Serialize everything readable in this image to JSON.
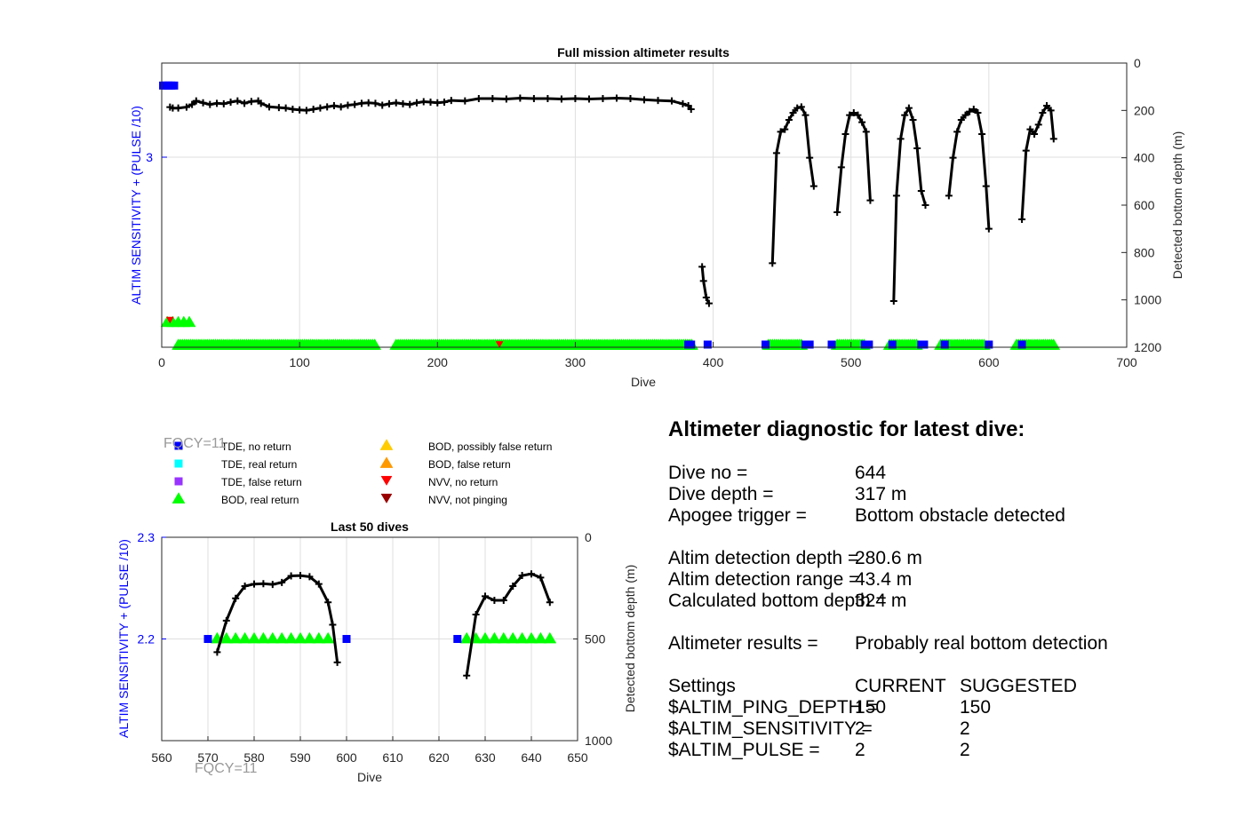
{
  "chart_data": [
    {
      "type": "scatter",
      "title": "Full mission altimeter results",
      "xlabel": "Dive",
      "ylabel": "ALTIM SENSITIVITY + (PULSE /10)",
      "ylabel_right": "Detected bottom depth (m)",
      "xlim": [
        0,
        700
      ],
      "x_ticks": [
        "0",
        "100",
        "200",
        "300",
        "400",
        "500",
        "600",
        "700"
      ],
      "y_ticks_left": [
        "3"
      ],
      "y_ticks_right": [
        "0",
        "200",
        "400",
        "600",
        "800",
        "1000",
        "1200"
      ],
      "ylim_right": [
        1200,
        0
      ],
      "grid": true,
      "depth_series_segments": [
        [
          [
            6,
            186
          ],
          [
            8,
            190
          ],
          [
            12,
            190
          ],
          [
            18,
            186
          ],
          [
            22,
            175
          ],
          [
            25,
            160
          ],
          [
            30,
            168
          ],
          [
            35,
            175
          ],
          [
            40,
            170
          ],
          [
            45,
            172
          ],
          [
            50,
            165
          ],
          [
            55,
            160
          ],
          [
            60,
            170
          ],
          [
            65,
            162
          ],
          [
            70,
            160
          ],
          [
            72,
            170
          ],
          [
            78,
            185
          ],
          [
            85,
            188
          ],
          [
            90,
            190
          ],
          [
            95,
            195
          ],
          [
            100,
            198
          ],
          [
            105,
            200
          ],
          [
            110,
            195
          ],
          [
            115,
            190
          ],
          [
            120,
            185
          ],
          [
            125,
            180
          ],
          [
            130,
            185
          ],
          [
            135,
            178
          ],
          [
            140,
            175
          ],
          [
            145,
            170
          ],
          [
            150,
            168
          ],
          [
            155,
            170
          ],
          [
            160,
            178
          ],
          [
            165,
            172
          ],
          [
            170,
            168
          ],
          [
            175,
            172
          ],
          [
            180,
            175
          ],
          [
            185,
            168
          ],
          [
            190,
            163
          ],
          [
            195,
            165
          ],
          [
            200,
            168
          ],
          [
            205,
            165
          ],
          [
            210,
            158
          ],
          [
            220,
            160
          ],
          [
            230,
            150
          ],
          [
            240,
            150
          ],
          [
            250,
            152
          ],
          [
            260,
            148
          ],
          [
            270,
            150
          ],
          [
            280,
            150
          ],
          [
            290,
            152
          ],
          [
            300,
            150
          ],
          [
            310,
            152
          ],
          [
            320,
            150
          ],
          [
            330,
            148
          ],
          [
            340,
            150
          ],
          [
            350,
            155
          ],
          [
            360,
            158
          ],
          [
            370,
            160
          ],
          [
            378,
            172
          ],
          [
            382,
            180
          ],
          [
            384,
            195
          ]
        ],
        [
          [
            392,
            860
          ],
          [
            393,
            920
          ],
          [
            395,
            990
          ],
          [
            397,
            1015
          ]
        ],
        [
          [
            443,
            845
          ],
          [
            446,
            380
          ],
          [
            449,
            290
          ],
          [
            452,
            280
          ],
          [
            455,
            240
          ],
          [
            458,
            210
          ],
          [
            461,
            190
          ],
          [
            464,
            185
          ],
          [
            467,
            220
          ],
          [
            470,
            400
          ],
          [
            473,
            520
          ]
        ],
        [
          [
            490,
            630
          ],
          [
            493,
            440
          ],
          [
            496,
            300
          ],
          [
            499,
            220
          ],
          [
            502,
            210
          ],
          [
            505,
            220
          ],
          [
            508,
            250
          ],
          [
            511,
            290
          ],
          [
            514,
            580
          ]
        ],
        [
          [
            531,
            1005
          ],
          [
            533,
            560
          ],
          [
            536,
            320
          ],
          [
            539,
            220
          ],
          [
            542,
            190
          ],
          [
            545,
            240
          ],
          [
            548,
            360
          ],
          [
            551,
            540
          ],
          [
            554,
            600
          ]
        ],
        [
          [
            571,
            560
          ],
          [
            574,
            400
          ],
          [
            577,
            290
          ],
          [
            580,
            240
          ],
          [
            583,
            220
          ],
          [
            586,
            205
          ],
          [
            589,
            195
          ],
          [
            592,
            210
          ],
          [
            595,
            300
          ],
          [
            598,
            520
          ],
          [
            600,
            700
          ]
        ],
        [
          [
            624,
            660
          ],
          [
            627,
            370
          ],
          [
            630,
            280
          ],
          [
            633,
            300
          ],
          [
            636,
            260
          ],
          [
            639,
            210
          ],
          [
            642,
            180
          ],
          [
            645,
            200
          ],
          [
            647,
            320
          ]
        ]
      ],
      "tde_no_return_markers": [
        [
          1,
          95
        ],
        [
          3,
          95
        ],
        [
          5,
          95
        ],
        [
          7,
          95
        ],
        [
          9,
          95
        ],
        [
          382,
          1200
        ],
        [
          384,
          1200
        ],
        [
          396,
          1200
        ],
        [
          438,
          1200
        ],
        [
          467,
          1200
        ],
        [
          470,
          1200
        ],
        [
          486,
          1200
        ],
        [
          510,
          1200
        ],
        [
          513,
          1200
        ],
        [
          530,
          1200
        ],
        [
          551,
          1200
        ],
        [
          553,
          1200
        ],
        [
          568,
          1200
        ],
        [
          600,
          1200
        ],
        [
          624,
          1200
        ]
      ],
      "bod_real_spans": [
        [
          12,
          155
        ],
        [
          170,
          385
        ],
        [
          440,
          465
        ],
        [
          490,
          510
        ],
        [
          528,
          548
        ],
        [
          565,
          597
        ],
        [
          620,
          648
        ]
      ],
      "bod_cluster_small": [
        [
          4,
          1100
        ],
        [
          8,
          1100
        ],
        [
          12,
          1100
        ],
        [
          16,
          1100
        ],
        [
          20,
          1100
        ]
      ],
      "nvv_no_return_markers": [
        [
          6,
          1092
        ],
        [
          245,
          1195
        ]
      ],
      "annotation_fqcy_top": "FQCY=11"
    },
    {
      "type": "scatter",
      "title": "Last 50 dives",
      "xlabel": "Dive",
      "ylabel": "ALTIM SENSITIVITY + (PULSE /10)",
      "ylabel_right": "Detected bottom depth (m)",
      "xlim": [
        560,
        650
      ],
      "x_ticks": [
        "560",
        "570",
        "580",
        "590",
        "600",
        "610",
        "620",
        "630",
        "640",
        "650"
      ],
      "y_ticks_left": [
        "2.3",
        "2.2"
      ],
      "y_ticks_right": [
        "0",
        "500",
        "1000"
      ],
      "ylim_left": [
        2.1,
        2.3
      ],
      "ylim_right": [
        1000,
        0
      ],
      "grid": true,
      "depth_series_segments": [
        [
          [
            572,
            565
          ],
          [
            574,
            410
          ],
          [
            576,
            300
          ],
          [
            578,
            240
          ],
          [
            580,
            230
          ],
          [
            582,
            228
          ],
          [
            584,
            232
          ],
          [
            586,
            222
          ],
          [
            588,
            190
          ],
          [
            590,
            188
          ],
          [
            592,
            194
          ],
          [
            594,
            230
          ],
          [
            596,
            320
          ],
          [
            597,
            430
          ],
          [
            598,
            615
          ]
        ],
        [
          [
            626,
            680
          ],
          [
            628,
            380
          ],
          [
            630,
            290
          ],
          [
            632,
            310
          ],
          [
            634,
            310
          ],
          [
            636,
            240
          ],
          [
            638,
            188
          ],
          [
            640,
            180
          ],
          [
            642,
            198
          ],
          [
            644,
            320
          ]
        ]
      ],
      "tde_no_return_markers": [
        [
          570,
          2.2
        ],
        [
          600,
          2.2
        ],
        [
          624,
          2.2
        ]
      ],
      "bod_real_markers": [
        572,
        574,
        576,
        578,
        580,
        582,
        584,
        586,
        588,
        590,
        592,
        594,
        596,
        626,
        628,
        630,
        632,
        634,
        636,
        638,
        640,
        642,
        644
      ],
      "annotation_fqcy_bottom": "FQCY=11"
    }
  ],
  "legend": {
    "items": [
      {
        "label": "TDE, no return",
        "marker": "square",
        "color": "#0000ff"
      },
      {
        "label": "TDE, real return",
        "marker": "square",
        "color": "#00ffff"
      },
      {
        "label": "TDE, false return",
        "marker": "square",
        "color": "#9933ff"
      },
      {
        "label": "BOD, real return",
        "marker": "triangle-up",
        "color": "#00ff00"
      },
      {
        "label": "BOD, possibly false return",
        "marker": "triangle-up",
        "color": "#ffcc00"
      },
      {
        "label": "BOD, false return",
        "marker": "triangle-up",
        "color": "#ff9900"
      },
      {
        "label": "NVV, no return",
        "marker": "triangle-down",
        "color": "#ff0000"
      },
      {
        "label": "NVV, not pinging",
        "marker": "triangle-down",
        "color": "#990000"
      }
    ]
  },
  "diagnostic": {
    "heading": "Altimeter diagnostic for latest dive:",
    "dive_no_label": "Dive no =",
    "dive_no_value": "644",
    "dive_depth_label": "Dive depth =",
    "dive_depth_value": "317 m",
    "apogee_label": "Apogee trigger =",
    "apogee_value": "Bottom obstacle detected",
    "det_depth_label": "Altim detection depth =",
    "det_depth_value": "280.6 m",
    "det_range_label": "Altim detection range =",
    "det_range_value": "43.4 m",
    "calc_depth_label": "Calculated bottom depth =",
    "calc_depth_value": "324 m",
    "results_label": "Altimeter results =",
    "results_value": "Probably real bottom detection",
    "settings_label": "Settings",
    "current_label": "CURRENT",
    "suggested_label": "SUGGESTED",
    "ping_label": "$ALTIM_PING_DEPTH =",
    "ping_current": "150",
    "ping_suggested": "150",
    "sens_label": "$ALTIM_SENSITIVITY =",
    "sens_current": "2",
    "sens_suggested": "2",
    "pulse_label": "$ALTIM_PULSE =",
    "pulse_current": "2",
    "pulse_suggested": "2"
  },
  "colors": {
    "axis_left": "#0000ff",
    "axis": "#262626",
    "grid": "#dfdfdf",
    "series": "#000000",
    "annotation": "#999999"
  }
}
